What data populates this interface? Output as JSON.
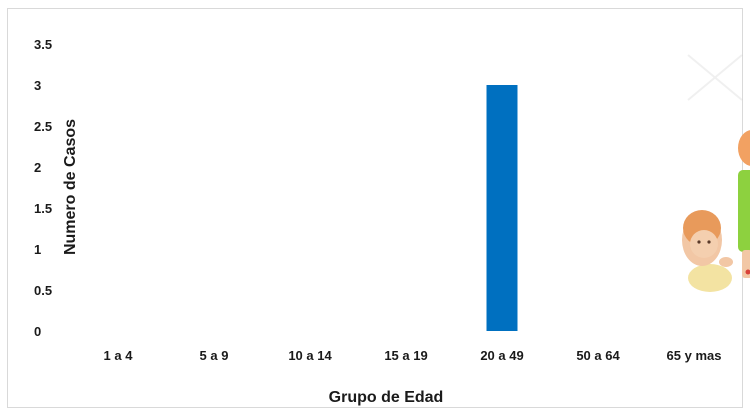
{
  "chart_data": {
    "type": "bar",
    "title": "",
    "xlabel": "Grupo de Edad",
    "ylabel": "Numero de Casos",
    "categories": [
      "1 a 4",
      "5 a 9",
      "10 a 14",
      "15 a 19",
      "20 a 49",
      "50 a 64",
      "65 y mas"
    ],
    "values": [
      0,
      0,
      0,
      0,
      3,
      0,
      0
    ],
    "ylim": [
      0,
      3.5
    ],
    "yticks": [
      "0",
      "0.5",
      "1",
      "1.5",
      "2",
      "2.5",
      "3",
      "3.5"
    ],
    "grid": false,
    "legend": "none",
    "bar_color": "#0070c0",
    "decoration": "baby-and-child-cartoon-icon"
  }
}
